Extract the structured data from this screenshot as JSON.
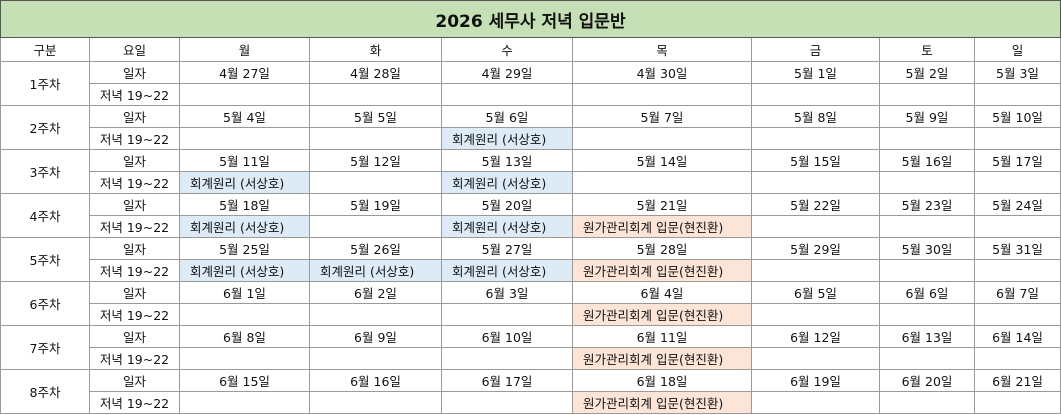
{
  "title": "2026 세무사 저녁 입문반",
  "columns": [
    "구분",
    "요일",
    "월",
    "화",
    "수",
    "목",
    "금",
    "토",
    "일"
  ],
  "weeks": [
    {
      "label": "1주차",
      "date_label": "일자",
      "evening_label": "저녁 19~22",
      "dates": [
        "4월 27일",
        "4월 28일",
        "4월 29일",
        "4월 30일",
        "5월 1일",
        "5월 2일",
        "5월 3일"
      ],
      "evening": [
        null,
        null,
        null,
        null,
        null,
        null,
        null
      ]
    },
    {
      "label": "2주차",
      "date_label": "일자",
      "evening_label": "저녁 19~22",
      "dates": [
        "5월 4일",
        "5월 5일",
        "5월 6일",
        "5월 7일",
        "5월 8일",
        "5월 9일",
        "5월 10일"
      ],
      "evening": [
        null,
        null,
        {
          "text": "회계원리 (서상호)",
          "color": "#ddebf7"
        },
        null,
        null,
        null,
        null
      ]
    },
    {
      "label": "3주차",
      "date_label": "일자",
      "evening_label": "저녁 19~22",
      "dates": [
        "5월 11일",
        "5월 12일",
        "5월 13일",
        "5월 14일",
        "5월 15일",
        "5월 16일",
        "5월 17일"
      ],
      "evening": [
        {
          "text": "회계원리 (서상호)",
          "color": "#ddebf7"
        },
        null,
        {
          "text": "회계원리 (서상호)",
          "color": "#ddebf7"
        },
        null,
        null,
        null,
        null
      ]
    },
    {
      "label": "4주차",
      "date_label": "일자",
      "evening_label": "저녁 19~22",
      "dates": [
        "5월 18일",
        "5월 19일",
        "5월 20일",
        "5월 21일",
        "5월 22일",
        "5월 23일",
        "5월 24일"
      ],
      "evening": [
        {
          "text": "회계원리 (서상호)",
          "color": "#ddebf7"
        },
        null,
        {
          "text": "회계원리 (서상호)",
          "color": "#ddebf7"
        },
        {
          "text": "원가관리회계 입문(현진환)",
          "color": "#fce4d6"
        },
        null,
        null,
        null
      ]
    },
    {
      "label": "5주차",
      "date_label": "일자",
      "evening_label": "저녁 19~22",
      "dates": [
        "5월 25일",
        "5월 26일",
        "5월 27일",
        "5월 28일",
        "5월 29일",
        "5월 30일",
        "5월 31일"
      ],
      "evening": [
        {
          "text": "회계원리 (서상호)",
          "color": "#ddebf7"
        },
        {
          "text": "회계원리 (서상호)",
          "color": "#ddebf7"
        },
        {
          "text": "회계원리 (서상호)",
          "color": "#ddebf7"
        },
        {
          "text": "원가관리회계 입문(현진환)",
          "color": "#fce4d6"
        },
        null,
        null,
        null
      ]
    },
    {
      "label": "6주차",
      "date_label": "일자",
      "evening_label": "저녁 19~22",
      "dates": [
        "6월 1일",
        "6월 2일",
        "6월 3일",
        "6월 4일",
        "6월 5일",
        "6월 6일",
        "6월 7일"
      ],
      "evening": [
        null,
        null,
        null,
        {
          "text": "원가관리회계 입문(현진환)",
          "color": "#fce4d6"
        },
        null,
        null,
        null
      ]
    },
    {
      "label": "7주차",
      "date_label": "일자",
      "evening_label": "저녁 19~22",
      "dates": [
        "6월 8일",
        "6월 9일",
        "6월 10일",
        "6월 11일",
        "6월 12일",
        "6월 13일",
        "6월 14일"
      ],
      "evening": [
        null,
        null,
        null,
        {
          "text": "원가관리회계 입문(현진환)",
          "color": "#fce4d6"
        },
        null,
        null,
        null
      ]
    },
    {
      "label": "8주차",
      "date_label": "일자",
      "evening_label": "저녁 19~22",
      "dates": [
        "6월 15일",
        "6월 16일",
        "6월 17일",
        "6월 18일",
        "6월 19일",
        "6월 20일",
        "6월 21일"
      ],
      "evening": [
        null,
        null,
        null,
        {
          "text": "원가관리회계 입문(현진환)",
          "color": "#fce4d6"
        },
        null,
        null,
        null
      ]
    }
  ]
}
